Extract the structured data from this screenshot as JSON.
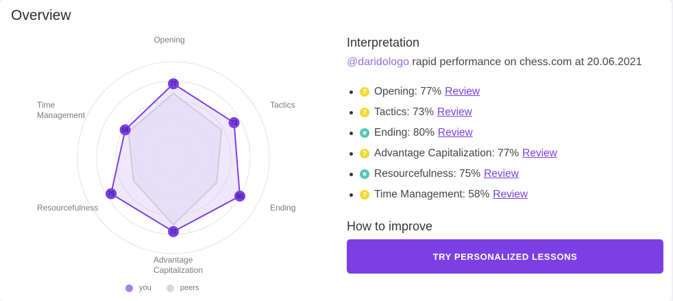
{
  "overview": {
    "title": "Overview"
  },
  "chart_data": {
    "type": "radar",
    "axes": [
      "Opening",
      "Tactics",
      "Ending",
      "Advantage Capitalization",
      "Resourcefulness",
      "Time Management"
    ],
    "axis_label_lines": [
      [
        "Opening"
      ],
      [
        "Tactics"
      ],
      [
        "Ending"
      ],
      [
        "Advantage",
        "Capitalization"
      ],
      [
        "Resourcefulness"
      ],
      [
        "Time",
        "Management"
      ]
    ],
    "range": [
      0,
      100
    ],
    "rings": 5,
    "series": [
      {
        "name": "you",
        "values": [
          77,
          73,
          80,
          77,
          75,
          58
        ],
        "color": "#7a3fe4",
        "point_labels": [
          "77",
          "73",
          "80",
          "77",
          "75",
          "58"
        ]
      },
      {
        "name": "peers",
        "values": [
          67,
          58,
          52,
          70,
          48,
          54
        ],
        "color": "#c8c8cc"
      }
    ],
    "legend": {
      "position": "bottom"
    }
  },
  "interpretation": {
    "title": "Interpretation",
    "handle": "@daridologo",
    "summary": " rapid performance on chess.com at 20.06.2021",
    "items": [
      {
        "label": "Opening: 77%",
        "icon": "question-icon",
        "review": "Review"
      },
      {
        "label": "Tactics: 73%",
        "icon": "question-icon",
        "review": "Review"
      },
      {
        "label": "Ending: 80%",
        "icon": "star-icon",
        "review": "Review"
      },
      {
        "label": "Advantage Capitalization: 77%",
        "icon": "question-icon",
        "review": "Review"
      },
      {
        "label": "Resourcefulness: 75%",
        "icon": "star-icon",
        "review": "Review"
      },
      {
        "label": "Time Management: 58%",
        "icon": "question-icon",
        "review": "Review"
      }
    ]
  },
  "improve": {
    "title": "How to improve",
    "button": "TRY PERSONALIZED LESSONS"
  },
  "colors": {
    "accent": "#7b3fe3",
    "question": "#f2d934",
    "star": "#56c6b3"
  }
}
